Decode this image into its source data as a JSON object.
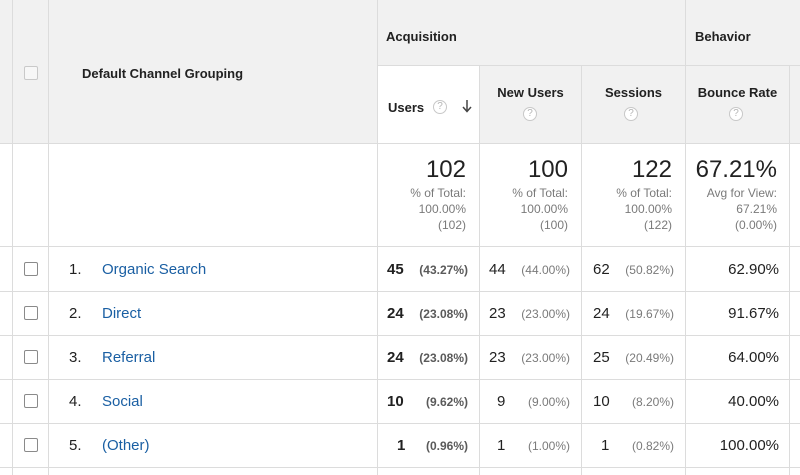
{
  "header": {
    "dimension_label": "Default Channel Grouping",
    "groups": {
      "acquisition": "Acquisition",
      "behavior": "Behavior"
    },
    "columns": {
      "users": "Users",
      "new_users": "New Users",
      "sessions": "Sessions",
      "bounce_rate": "Bounce Rate"
    },
    "help_glyph": "?"
  },
  "totals": {
    "users": {
      "value": "102",
      "line1": "% of Total:",
      "line2": "100.00%",
      "line3": "(102)"
    },
    "new_users": {
      "value": "100",
      "line1": "% of Total:",
      "line2": "100.00%",
      "line3": "(100)"
    },
    "sessions": {
      "value": "122",
      "line1": "% of Total:",
      "line2": "100.00%",
      "line3": "(122)"
    },
    "bounce_rate": {
      "value": "67.21%",
      "line1": "Avg for View:",
      "line2": "67.21%",
      "line3": "(0.00%)"
    }
  },
  "rows": [
    {
      "num": "1.",
      "channel": "Organic Search",
      "users": "45",
      "users_pct": "(43.27%)",
      "new_users": "44",
      "new_users_pct": "(44.00%)",
      "sessions": "62",
      "sessions_pct": "(50.82%)",
      "bounce_rate": "62.90%"
    },
    {
      "num": "2.",
      "channel": "Direct",
      "users": "24",
      "users_pct": "(23.08%)",
      "new_users": "23",
      "new_users_pct": "(23.00%)",
      "sessions": "24",
      "sessions_pct": "(19.67%)",
      "bounce_rate": "91.67%"
    },
    {
      "num": "3.",
      "channel": "Referral",
      "users": "24",
      "users_pct": "(23.08%)",
      "new_users": "23",
      "new_users_pct": "(23.00%)",
      "sessions": "25",
      "sessions_pct": "(20.49%)",
      "bounce_rate": "64.00%"
    },
    {
      "num": "4.",
      "channel": "Social",
      "users": "10",
      "users_pct": "(9.62%)",
      "new_users": "9",
      "new_users_pct": "(9.00%)",
      "sessions": "10",
      "sessions_pct": "(8.20%)",
      "bounce_rate": "40.00%"
    },
    {
      "num": "5.",
      "channel": "(Other)",
      "users": "1",
      "users_pct": "(0.96%)",
      "new_users": "1",
      "new_users_pct": "(1.00%)",
      "sessions": "1",
      "sessions_pct": "(0.82%)",
      "bounce_rate": "100.00%"
    }
  ],
  "colors": {
    "link": "#1a5fa3",
    "header_bg": "#f1f1f1",
    "grid": "#dcdcdc",
    "muted": "#7a7a7a"
  }
}
